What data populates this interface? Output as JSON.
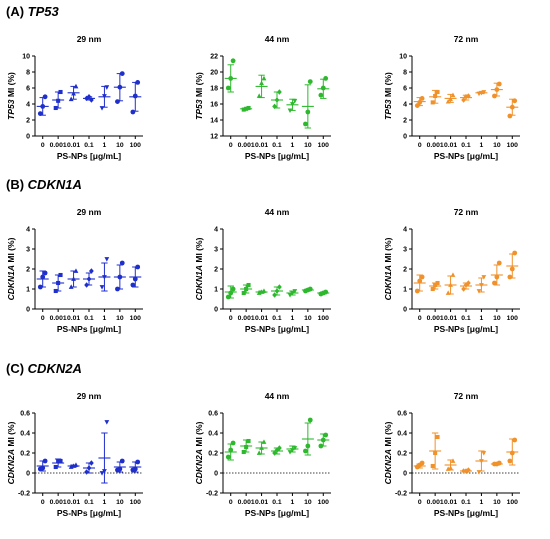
{
  "chart_data": {
    "type": "scatter",
    "x_categories": [
      "0",
      "0.001",
      "0.01",
      "0.1",
      "1",
      "10",
      "100"
    ],
    "size_titles": [
      "29 nm",
      "44 nm",
      "72 nm"
    ],
    "size_colors": [
      "#1f2fcc",
      "#2db82d",
      "#f0912a"
    ],
    "marker_shapes": [
      "circle",
      "square",
      "triangle",
      "diamond",
      "triangle-down",
      "circle",
      "circle"
    ],
    "xlabel": "PS-NPs [μg/mL]",
    "rows": [
      {
        "label": "(A)",
        "gene": "TP53",
        "panels": [
          {
            "title": "29 nm",
            "ylabel": "TP53 MI (%)",
            "ylim": [
              0,
              10
            ],
            "yticks": [
              0,
              2,
              4,
              6,
              8,
              10
            ],
            "zero_line": false,
            "points": [
              [
                2.8,
                3.7,
                4.9
              ],
              [
                3.5,
                4.4,
                5.5
              ],
              [
                4.6,
                5.3,
                6.2
              ],
              [
                4.7,
                4.9,
                4.5
              ],
              [
                3.5,
                5.0,
                6.1
              ],
              [
                4.3,
                6.1,
                7.8
              ],
              [
                3.0,
                5.0,
                6.7
              ]
            ],
            "mean": [
              3.7,
              4.5,
              5.4,
              4.7,
              4.9,
              6.1,
              4.9
            ],
            "sd": [
              1.1,
              1.0,
              0.8,
              0.2,
              1.3,
              1.7,
              1.8
            ]
          },
          {
            "title": "44 nm",
            "ylabel": "TP53 MI (%)",
            "ylim": [
              12,
              22
            ],
            "yticks": [
              12,
              14,
              16,
              18,
              20,
              22
            ],
            "zero_line": false,
            "points": [
              [
                18.0,
                19.2,
                21.4
              ],
              [
                15.3,
                15.4,
                15.5
              ],
              [
                17.0,
                18.6,
                19.2
              ],
              [
                15.7,
                16.5,
                17.5
              ],
              [
                15.2,
                16.0,
                16.4
              ],
              [
                13.5,
                15.0,
                18.8
              ],
              [
                17.1,
                18.0,
                19.2
              ]
            ],
            "mean": [
              19.2,
              15.4,
              18.2,
              16.5,
              15.9,
              15.7,
              17.9
            ],
            "sd": [
              1.7,
              0.1,
              1.4,
              1.0,
              0.7,
              2.7,
              1.2
            ]
          },
          {
            "title": "72 nm",
            "ylabel": "TP53 MI (%)",
            "ylim": [
              0,
              10
            ],
            "yticks": [
              0,
              2,
              4,
              6,
              8,
              10
            ],
            "zero_line": false,
            "points": [
              [
                3.8,
                4.2,
                4.7
              ],
              [
                4.2,
                5.0,
                5.5
              ],
              [
                4.3,
                4.6,
                5.1
              ],
              [
                4.5,
                4.9,
                5.0
              ],
              [
                5.3,
                5.4,
                5.5
              ],
              [
                5.0,
                5.8,
                6.5
              ],
              [
                2.5,
                3.6,
                4.4
              ]
            ],
            "mean": [
              4.3,
              4.9,
              4.7,
              4.8,
              5.4,
              5.8,
              3.6
            ],
            "sd": [
              0.5,
              0.8,
              0.5,
              0.3,
              0.1,
              0.8,
              1.0
            ]
          }
        ]
      },
      {
        "label": "(B)",
        "gene": "CDKN1A",
        "panels": [
          {
            "title": "29 nm",
            "ylabel": "CDKN1A MI (%)",
            "ylim": [
              0,
              4
            ],
            "yticks": [
              0,
              1,
              2,
              3,
              4
            ],
            "zero_line": false,
            "points": [
              [
                1.1,
                1.6,
                1.8
              ],
              [
                0.9,
                1.3,
                1.7
              ],
              [
                1.1,
                1.5,
                1.9
              ],
              [
                1.2,
                1.5,
                1.9
              ],
              [
                1.1,
                1.6,
                2.5
              ],
              [
                1.0,
                1.6,
                2.3
              ],
              [
                1.2,
                1.5,
                2.1
              ]
            ],
            "mean": [
              1.5,
              1.3,
              1.5,
              1.5,
              1.6,
              1.6,
              1.6
            ],
            "sd": [
              0.4,
              0.4,
              0.4,
              0.3,
              0.7,
              0.6,
              0.5
            ]
          },
          {
            "title": "44 nm",
            "ylabel": "CDKN1A MI (%)",
            "ylim": [
              0,
              4
            ],
            "yticks": [
              0,
              1,
              2,
              3,
              4
            ],
            "zero_line": false,
            "points": [
              [
                0.6,
                0.8,
                1.0
              ],
              [
                0.8,
                1.0,
                1.2
              ],
              [
                0.8,
                0.85,
                0.9
              ],
              [
                0.7,
                0.9,
                1.1
              ],
              [
                0.7,
                0.8,
                0.9
              ],
              [
                0.9,
                0.95,
                1.0
              ],
              [
                0.75,
                0.8,
                0.85
              ]
            ],
            "mean": [
              0.85,
              1.0,
              0.85,
              0.9,
              0.8,
              0.95,
              0.8
            ],
            "sd": [
              0.3,
              0.2,
              0.05,
              0.2,
              0.1,
              0.05,
              0.05
            ]
          },
          {
            "title": "72 nm",
            "ylabel": "CDKN1A MI (%)",
            "ylim": [
              0,
              4
            ],
            "yticks": [
              0,
              1,
              2,
              3,
              4
            ],
            "zero_line": false,
            "points": [
              [
                0.9,
                1.4,
                1.6
              ],
              [
                1.0,
                1.2,
                1.3
              ],
              [
                0.8,
                1.2,
                1.7
              ],
              [
                1.0,
                1.2,
                1.3
              ],
              [
                0.9,
                1.2,
                1.6
              ],
              [
                1.3,
                1.6,
                2.3
              ],
              [
                1.6,
                2.0,
                2.8
              ]
            ],
            "mean": [
              1.3,
              1.15,
              1.2,
              1.15,
              1.2,
              1.7,
              2.15
            ],
            "sd": [
              0.4,
              0.15,
              0.45,
              0.15,
              0.35,
              0.5,
              0.6
            ]
          }
        ]
      },
      {
        "label": "(C)",
        "gene": "CDKN2A",
        "panels": [
          {
            "title": "29 nm",
            "ylabel": "CDKN2A MI (%)",
            "ylim": [
              -0.2,
              0.6
            ],
            "yticks": [
              -0.2,
              0.0,
              0.2,
              0.4,
              0.6
            ],
            "zero_line": true,
            "points": [
              [
                0.04,
                0.05,
                0.12
              ],
              [
                0.06,
                0.12,
                0.12
              ],
              [
                0.06,
                0.07,
                0.08
              ],
              [
                0.01,
                0.05,
                0.1
              ],
              [
                0.0,
                0.02,
                0.51
              ],
              [
                0.03,
                0.04,
                0.12
              ],
              [
                0.03,
                0.04,
                0.11
              ]
            ],
            "mean": [
              0.07,
              0.1,
              0.07,
              0.05,
              0.15,
              0.06,
              0.06
            ],
            "sd": [
              0.05,
              0.04,
              0.01,
              0.05,
              0.25,
              0.05,
              0.05
            ]
          },
          {
            "title": "44 nm",
            "ylabel": "CDKN2A MI (%)",
            "ylim": [
              -0.2,
              0.6
            ],
            "yticks": [
              -0.2,
              0.0,
              0.2,
              0.4,
              0.6
            ],
            "zero_line": true,
            "points": [
              [
                0.16,
                0.23,
                0.3
              ],
              [
                0.21,
                0.26,
                0.32
              ],
              [
                0.2,
                0.25,
                0.31
              ],
              [
                0.2,
                0.23,
                0.25
              ],
              [
                0.21,
                0.23,
                0.25
              ],
              [
                0.22,
                0.27,
                0.53
              ],
              [
                0.27,
                0.33,
                0.38
              ]
            ],
            "mean": [
              0.21,
              0.27,
              0.25,
              0.22,
              0.24,
              0.34,
              0.33
            ],
            "sd": [
              0.08,
              0.06,
              0.06,
              0.03,
              0.03,
              0.16,
              0.06
            ]
          },
          {
            "title": "72 nm",
            "ylabel": "CDKN2A MI (%)",
            "ylim": [
              -0.2,
              0.6
            ],
            "yticks": [
              -0.2,
              0.0,
              0.2,
              0.4,
              0.6
            ],
            "zero_line": true,
            "points": [
              [
                0.06,
                0.08,
                0.1
              ],
              [
                0.07,
                0.2,
                0.36
              ],
              [
                0.04,
                0.05,
                0.12
              ],
              [
                0.02,
                0.02,
                0.03
              ],
              [
                0.01,
                0.12,
                0.2
              ],
              [
                0.09,
                0.09,
                0.1
              ],
              [
                0.12,
                0.2,
                0.33
              ]
            ],
            "mean": [
              0.07,
              0.22,
              0.08,
              0.02,
              0.12,
              0.09,
              0.21
            ],
            "sd": [
              0.02,
              0.18,
              0.05,
              0.01,
              0.1,
              0.01,
              0.13
            ]
          }
        ]
      }
    ]
  }
}
